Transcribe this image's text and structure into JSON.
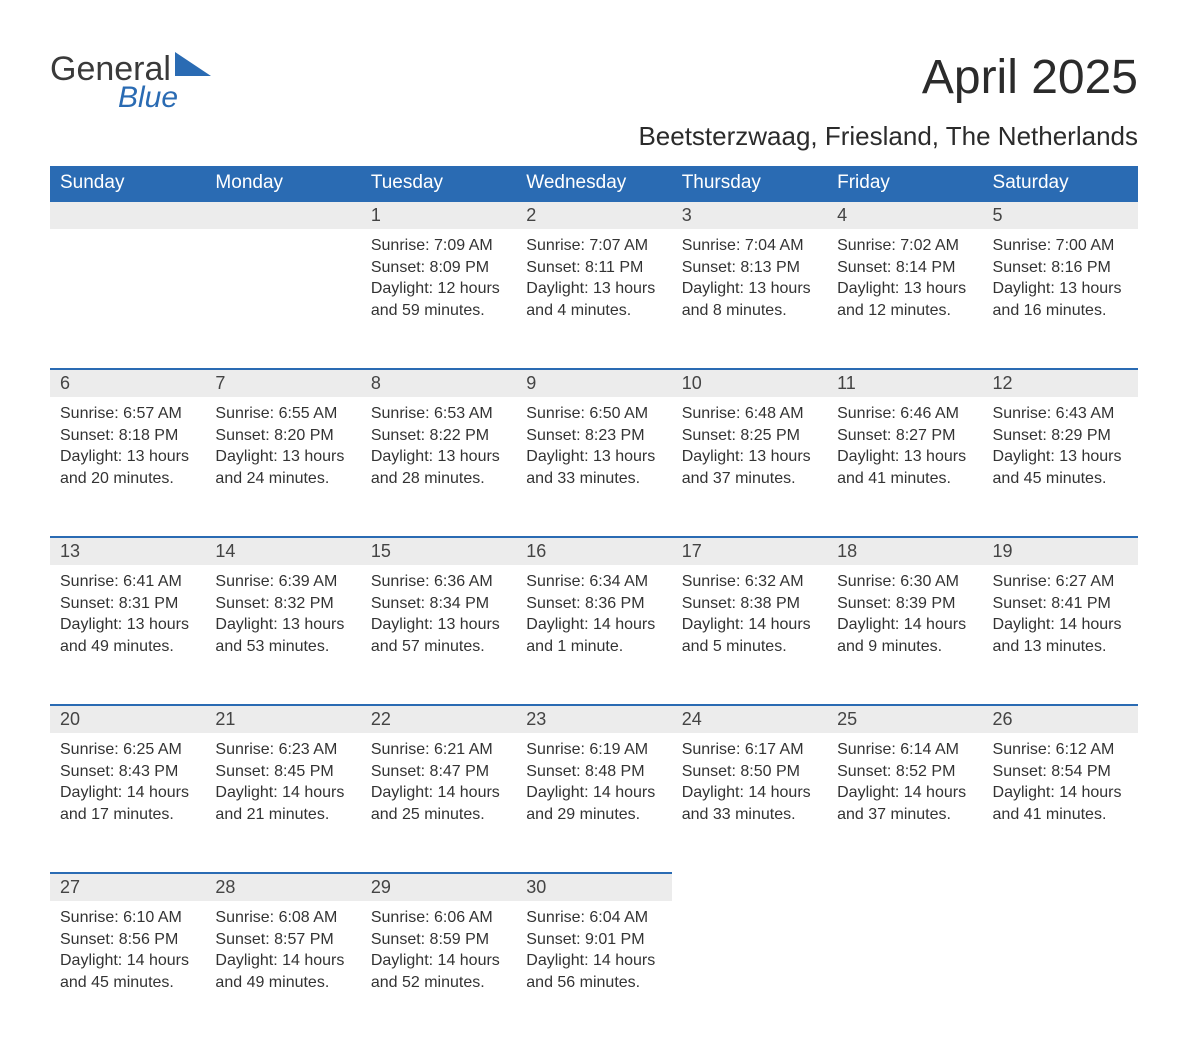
{
  "brand": {
    "main": "General",
    "sub": "Blue",
    "main_color": "#3a3a3a",
    "sub_color": "#2a6bb3"
  },
  "title": "April 2025",
  "location": "Beetsterzwaag, Friesland, The Netherlands",
  "header_bg": "#2a6bb3",
  "header_text_color": "#ffffff",
  "daynum_bg": "#ececec",
  "border_color": "#2a6bb3",
  "text_color": "#333333",
  "background_color": "#ffffff",
  "font_family": "Arial",
  "title_fontsize": 48,
  "location_fontsize": 26,
  "header_fontsize": 19,
  "cell_fontsize": 16,
  "columns": [
    "Sunday",
    "Monday",
    "Tuesday",
    "Wednesday",
    "Thursday",
    "Friday",
    "Saturday"
  ],
  "weeks": [
    [
      null,
      null,
      {
        "n": "1",
        "sr": "Sunrise: 7:09 AM",
        "ss": "Sunset: 8:09 PM",
        "d1": "Daylight: 12 hours",
        "d2": "and 59 minutes."
      },
      {
        "n": "2",
        "sr": "Sunrise: 7:07 AM",
        "ss": "Sunset: 8:11 PM",
        "d1": "Daylight: 13 hours",
        "d2": "and 4 minutes."
      },
      {
        "n": "3",
        "sr": "Sunrise: 7:04 AM",
        "ss": "Sunset: 8:13 PM",
        "d1": "Daylight: 13 hours",
        "d2": "and 8 minutes."
      },
      {
        "n": "4",
        "sr": "Sunrise: 7:02 AM",
        "ss": "Sunset: 8:14 PM",
        "d1": "Daylight: 13 hours",
        "d2": "and 12 minutes."
      },
      {
        "n": "5",
        "sr": "Sunrise: 7:00 AM",
        "ss": "Sunset: 8:16 PM",
        "d1": "Daylight: 13 hours",
        "d2": "and 16 minutes."
      }
    ],
    [
      {
        "n": "6",
        "sr": "Sunrise: 6:57 AM",
        "ss": "Sunset: 8:18 PM",
        "d1": "Daylight: 13 hours",
        "d2": "and 20 minutes."
      },
      {
        "n": "7",
        "sr": "Sunrise: 6:55 AM",
        "ss": "Sunset: 8:20 PM",
        "d1": "Daylight: 13 hours",
        "d2": "and 24 minutes."
      },
      {
        "n": "8",
        "sr": "Sunrise: 6:53 AM",
        "ss": "Sunset: 8:22 PM",
        "d1": "Daylight: 13 hours",
        "d2": "and 28 minutes."
      },
      {
        "n": "9",
        "sr": "Sunrise: 6:50 AM",
        "ss": "Sunset: 8:23 PM",
        "d1": "Daylight: 13 hours",
        "d2": "and 33 minutes."
      },
      {
        "n": "10",
        "sr": "Sunrise: 6:48 AM",
        "ss": "Sunset: 8:25 PM",
        "d1": "Daylight: 13 hours",
        "d2": "and 37 minutes."
      },
      {
        "n": "11",
        "sr": "Sunrise: 6:46 AM",
        "ss": "Sunset: 8:27 PM",
        "d1": "Daylight: 13 hours",
        "d2": "and 41 minutes."
      },
      {
        "n": "12",
        "sr": "Sunrise: 6:43 AM",
        "ss": "Sunset: 8:29 PM",
        "d1": "Daylight: 13 hours",
        "d2": "and 45 minutes."
      }
    ],
    [
      {
        "n": "13",
        "sr": "Sunrise: 6:41 AM",
        "ss": "Sunset: 8:31 PM",
        "d1": "Daylight: 13 hours",
        "d2": "and 49 minutes."
      },
      {
        "n": "14",
        "sr": "Sunrise: 6:39 AM",
        "ss": "Sunset: 8:32 PM",
        "d1": "Daylight: 13 hours",
        "d2": "and 53 minutes."
      },
      {
        "n": "15",
        "sr": "Sunrise: 6:36 AM",
        "ss": "Sunset: 8:34 PM",
        "d1": "Daylight: 13 hours",
        "d2": "and 57 minutes."
      },
      {
        "n": "16",
        "sr": "Sunrise: 6:34 AM",
        "ss": "Sunset: 8:36 PM",
        "d1": "Daylight: 14 hours",
        "d2": "and 1 minute."
      },
      {
        "n": "17",
        "sr": "Sunrise: 6:32 AM",
        "ss": "Sunset: 8:38 PM",
        "d1": "Daylight: 14 hours",
        "d2": "and 5 minutes."
      },
      {
        "n": "18",
        "sr": "Sunrise: 6:30 AM",
        "ss": "Sunset: 8:39 PM",
        "d1": "Daylight: 14 hours",
        "d2": "and 9 minutes."
      },
      {
        "n": "19",
        "sr": "Sunrise: 6:27 AM",
        "ss": "Sunset: 8:41 PM",
        "d1": "Daylight: 14 hours",
        "d2": "and 13 minutes."
      }
    ],
    [
      {
        "n": "20",
        "sr": "Sunrise: 6:25 AM",
        "ss": "Sunset: 8:43 PM",
        "d1": "Daylight: 14 hours",
        "d2": "and 17 minutes."
      },
      {
        "n": "21",
        "sr": "Sunrise: 6:23 AM",
        "ss": "Sunset: 8:45 PM",
        "d1": "Daylight: 14 hours",
        "d2": "and 21 minutes."
      },
      {
        "n": "22",
        "sr": "Sunrise: 6:21 AM",
        "ss": "Sunset: 8:47 PM",
        "d1": "Daylight: 14 hours",
        "d2": "and 25 minutes."
      },
      {
        "n": "23",
        "sr": "Sunrise: 6:19 AM",
        "ss": "Sunset: 8:48 PM",
        "d1": "Daylight: 14 hours",
        "d2": "and 29 minutes."
      },
      {
        "n": "24",
        "sr": "Sunrise: 6:17 AM",
        "ss": "Sunset: 8:50 PM",
        "d1": "Daylight: 14 hours",
        "d2": "and 33 minutes."
      },
      {
        "n": "25",
        "sr": "Sunrise: 6:14 AM",
        "ss": "Sunset: 8:52 PM",
        "d1": "Daylight: 14 hours",
        "d2": "and 37 minutes."
      },
      {
        "n": "26",
        "sr": "Sunrise: 6:12 AM",
        "ss": "Sunset: 8:54 PM",
        "d1": "Daylight: 14 hours",
        "d2": "and 41 minutes."
      }
    ],
    [
      {
        "n": "27",
        "sr": "Sunrise: 6:10 AM",
        "ss": "Sunset: 8:56 PM",
        "d1": "Daylight: 14 hours",
        "d2": "and 45 minutes."
      },
      {
        "n": "28",
        "sr": "Sunrise: 6:08 AM",
        "ss": "Sunset: 8:57 PM",
        "d1": "Daylight: 14 hours",
        "d2": "and 49 minutes."
      },
      {
        "n": "29",
        "sr": "Sunrise: 6:06 AM",
        "ss": "Sunset: 8:59 PM",
        "d1": "Daylight: 14 hours",
        "d2": "and 52 minutes."
      },
      {
        "n": "30",
        "sr": "Sunrise: 6:04 AM",
        "ss": "Sunset: 9:01 PM",
        "d1": "Daylight: 14 hours",
        "d2": "and 56 minutes."
      },
      null,
      null,
      null
    ]
  ]
}
